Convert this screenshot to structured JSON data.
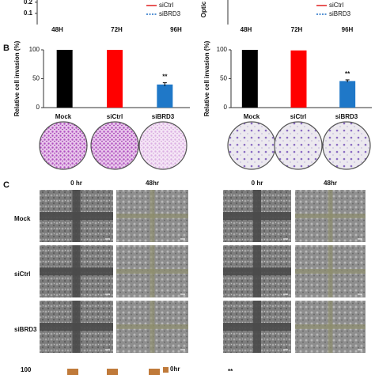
{
  "panel_labels": [
    "B",
    "C"
  ],
  "chart_data": [
    {
      "type": "line",
      "categories": [
        "48H",
        "72H",
        "96H"
      ],
      "ylim": [
        0,
        0.22
      ],
      "yticks": [
        0.1,
        0.2
      ],
      "series": [
        {
          "name": "siCtrl",
          "color": "#e02020",
          "values": [
            null,
            null,
            null
          ]
        },
        {
          "name": "siBRD3",
          "color": "#1f6fc5",
          "dash": true,
          "values": [
            null,
            null,
            null
          ]
        }
      ]
    },
    {
      "type": "line",
      "y_label": "Optic",
      "categories": [
        "48H",
        "72H",
        "96H"
      ],
      "ylim": [
        0,
        0.22
      ],
      "series": [
        {
          "name": "siCtrl",
          "color": "#e02020",
          "values": [
            null,
            null,
            null
          ]
        },
        {
          "name": "siBRD3",
          "color": "#1f6fc5",
          "dash": true,
          "values": [
            null,
            null,
            null
          ]
        }
      ]
    },
    {
      "type": "bar",
      "y_label": "Relative cell invasion (%)",
      "categories": [
        "Mock",
        "siCtrl",
        "siBRD3"
      ],
      "values": [
        100,
        100,
        40
      ],
      "errors": [
        0,
        0,
        3
      ],
      "colors": [
        "#000000",
        "#ff0000",
        "#1f78c8"
      ],
      "annotation": "**",
      "ylim": [
        0,
        100
      ],
      "yticks": [
        0,
        50,
        100
      ]
    },
    {
      "type": "bar",
      "y_label": "Relative cell invasion (%)",
      "categories": [
        "Mock",
        "siCtrl",
        "siBRD3"
      ],
      "values": [
        100,
        99,
        46
      ],
      "errors": [
        0,
        0,
        2
      ],
      "colors": [
        "#000000",
        "#ff0000",
        "#1f78c8"
      ],
      "annotation": "**",
      "ylim": [
        0,
        100
      ],
      "yticks": [
        0,
        50,
        100
      ]
    }
  ],
  "dishes": {
    "left": [
      "Mock",
      "siCtrl",
      "siBRD3"
    ],
    "right": [
      "Mock",
      "siCtrl",
      "siBRD3"
    ]
  },
  "scratch": {
    "columns": [
      "0 hr",
      "48hr",
      "0 hr",
      "48hr"
    ],
    "rows": [
      "Mock",
      "siCtrl",
      "siBRD3"
    ]
  },
  "bottom": {
    "tick": 100,
    "legend": "0hr",
    "annotation": "**"
  }
}
